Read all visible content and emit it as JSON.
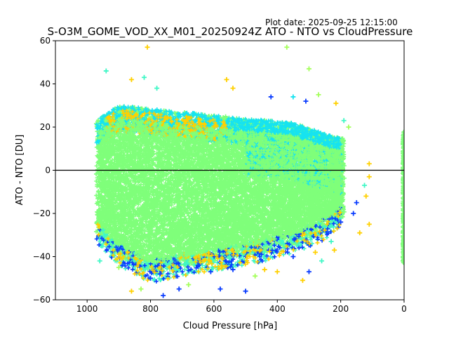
{
  "plot_date": "Plot date: 2025-09-25 12:15:00",
  "chart_data": {
    "type": "scatter",
    "title": "S-O3M_GOME_VOD_XX_M01_20250924Z ATO - NTO vs CloudPressure",
    "xlabel": "Cloud Pressure [hPa]",
    "ylabel": "ATO - NTO [DU]",
    "xlim": [
      1100,
      0
    ],
    "ylim": [
      -60,
      60
    ],
    "x_ticks": [
      1000,
      800,
      600,
      400,
      200,
      0
    ],
    "y_ticks": [
      -60,
      -40,
      -20,
      0,
      20,
      40,
      60
    ],
    "reference_line_y": 0,
    "marker": "+",
    "colors": {
      "dense_core": "#7fff7a",
      "cyan": "#16e3f0",
      "yellow": "#ffd000",
      "blue": "#0a3cff",
      "lightgreen": "#a4ff5a",
      "aqua": "#3ff7c6"
    },
    "density_envelope": {
      "core_pressure_range": [
        970,
        190
      ],
      "upper_edge": [
        [
          980,
          22
        ],
        [
          900,
          30
        ],
        [
          700,
          27
        ],
        [
          500,
          24
        ],
        [
          350,
          22
        ],
        [
          250,
          17
        ],
        [
          200,
          15
        ]
      ],
      "lower_edge": [
        [
          980,
          -28
        ],
        [
          900,
          -40
        ],
        [
          800,
          -48
        ],
        [
          700,
          -45
        ],
        [
          500,
          -40
        ],
        [
          350,
          -35
        ],
        [
          250,
          -28
        ],
        [
          200,
          -22
        ]
      ]
    },
    "clear_sky_column": {
      "pressure": 0,
      "y_range": [
        -43,
        18
      ]
    },
    "scatter_points": [
      {
        "x": 810,
        "y": 57,
        "c": "yellow"
      },
      {
        "x": 370,
        "y": 57,
        "c": "lightgreen"
      },
      {
        "x": 940,
        "y": 46,
        "c": "aqua"
      },
      {
        "x": 300,
        "y": 47,
        "c": "lightgreen"
      },
      {
        "x": 820,
        "y": 43,
        "c": "aqua"
      },
      {
        "x": 560,
        "y": 42,
        "c": "yellow"
      },
      {
        "x": 860,
        "y": 42,
        "c": "yellow"
      },
      {
        "x": 780,
        "y": 38,
        "c": "aqua"
      },
      {
        "x": 540,
        "y": 38,
        "c": "yellow"
      },
      {
        "x": 420,
        "y": 34,
        "c": "blue"
      },
      {
        "x": 350,
        "y": 34,
        "c": "cyan"
      },
      {
        "x": 310,
        "y": 32,
        "c": "blue"
      },
      {
        "x": 270,
        "y": 35,
        "c": "lightgreen"
      },
      {
        "x": 215,
        "y": 31,
        "c": "yellow"
      },
      {
        "x": 190,
        "y": 23,
        "c": "aqua"
      },
      {
        "x": 175,
        "y": 20,
        "c": "lightgreen"
      },
      {
        "x": 110,
        "y": 3,
        "c": "yellow"
      },
      {
        "x": 110,
        "y": -3,
        "c": "yellow"
      },
      {
        "x": 120,
        "y": -12,
        "c": "yellow"
      },
      {
        "x": 110,
        "y": -25,
        "c": "yellow"
      },
      {
        "x": 125,
        "y": -7,
        "c": "aqua"
      },
      {
        "x": 150,
        "y": -15,
        "c": "blue"
      },
      {
        "x": 140,
        "y": -29,
        "c": "yellow"
      },
      {
        "x": 160,
        "y": -20,
        "c": "blue"
      },
      {
        "x": 960,
        "y": -42,
        "c": "aqua"
      },
      {
        "x": 900,
        "y": -45,
        "c": "lightgreen"
      },
      {
        "x": 800,
        "y": -50,
        "c": "blue"
      },
      {
        "x": 770,
        "y": -48,
        "c": "blue"
      },
      {
        "x": 720,
        "y": -46,
        "c": "aqua"
      },
      {
        "x": 650,
        "y": -44,
        "c": "blue"
      },
      {
        "x": 610,
        "y": -47,
        "c": "blue"
      },
      {
        "x": 540,
        "y": -46,
        "c": "blue"
      },
      {
        "x": 500,
        "y": -56,
        "c": "blue"
      },
      {
        "x": 470,
        "y": -49,
        "c": "lightgreen"
      },
      {
        "x": 440,
        "y": -46,
        "c": "yellow"
      },
      {
        "x": 400,
        "y": -47,
        "c": "yellow"
      },
      {
        "x": 320,
        "y": -51,
        "c": "yellow"
      },
      {
        "x": 300,
        "y": -47,
        "c": "blue"
      },
      {
        "x": 260,
        "y": -42,
        "c": "aqua"
      },
      {
        "x": 280,
        "y": -38,
        "c": "yellow"
      },
      {
        "x": 350,
        "y": -40,
        "c": "blue"
      },
      {
        "x": 860,
        "y": -56,
        "c": "yellow"
      },
      {
        "x": 830,
        "y": -55,
        "c": "lightgreen"
      },
      {
        "x": 760,
        "y": -58,
        "c": "blue"
      },
      {
        "x": 710,
        "y": -55,
        "c": "blue"
      },
      {
        "x": 680,
        "y": -53,
        "c": "lightgreen"
      },
      {
        "x": 580,
        "y": -55,
        "c": "blue"
      },
      {
        "x": 230,
        "y": -33,
        "c": "aqua"
      },
      {
        "x": 220,
        "y": -37,
        "c": "yellow"
      },
      {
        "x": 200,
        "y": -24,
        "c": "blue"
      }
    ]
  }
}
